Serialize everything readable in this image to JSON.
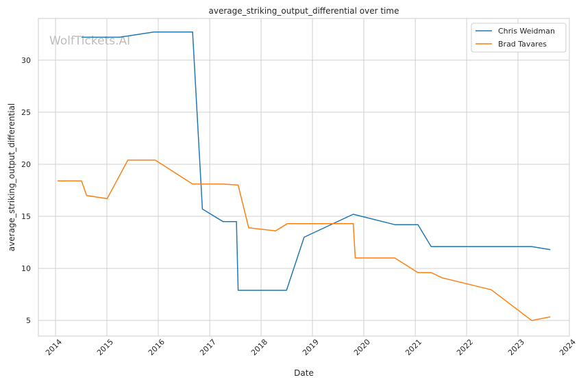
{
  "chart_data": {
    "type": "line",
    "title": "average_striking_output_differential over time",
    "xlabel": "Date",
    "ylabel": "average_striking_output_differential",
    "watermark": "WolfTickets.AI",
    "xlim": [
      "2013-09-01",
      "2024-01-01"
    ],
    "ylim": [
      3.5,
      34
    ],
    "x_ticks": [
      "2014",
      "2015",
      "2016",
      "2017",
      "2018",
      "2019",
      "2020",
      "2021",
      "2022",
      "2023",
      "2024"
    ],
    "y_ticks": [
      5,
      10,
      15,
      20,
      25,
      30
    ],
    "grid": true,
    "legend_position": "top-right",
    "series": [
      {
        "name": "Chris Weidman",
        "color": "#1f77b4",
        "points": [
          [
            "2014-07-05",
            32.2
          ],
          [
            "2015-04-01",
            32.2
          ],
          [
            "2015-12-01",
            32.7
          ],
          [
            "2016-09-01",
            32.7
          ],
          [
            "2016-11-10",
            15.7
          ],
          [
            "2017-04-05",
            14.5
          ],
          [
            "2017-07-10",
            14.5
          ],
          [
            "2017-07-22",
            7.9
          ],
          [
            "2018-07-01",
            7.9
          ],
          [
            "2018-11-03",
            13.0
          ],
          [
            "2019-10-18",
            15.2
          ],
          [
            "2020-08-08",
            14.2
          ],
          [
            "2021-01-20",
            14.2
          ],
          [
            "2021-04-24",
            12.1
          ],
          [
            "2023-04-08",
            12.1
          ],
          [
            "2023-08-19",
            11.8
          ]
        ]
      },
      {
        "name": "Brad Tavares",
        "color": "#ff7f0e",
        "points": [
          [
            "2014-01-15",
            18.4
          ],
          [
            "2014-07-05",
            18.4
          ],
          [
            "2014-08-10",
            17.0
          ],
          [
            "2015-01-03",
            16.7
          ],
          [
            "2015-05-30",
            20.4
          ],
          [
            "2015-12-11",
            20.4
          ],
          [
            "2016-09-01",
            18.1
          ],
          [
            "2017-04-08",
            18.1
          ],
          [
            "2017-07-22",
            18.0
          ],
          [
            "2017-10-05",
            13.9
          ],
          [
            "2018-04-14",
            13.6
          ],
          [
            "2018-07-07",
            14.3
          ],
          [
            "2019-10-18",
            14.3
          ],
          [
            "2019-11-01",
            11.0
          ],
          [
            "2020-08-08",
            11.0
          ],
          [
            "2021-01-20",
            9.6
          ],
          [
            "2021-04-24",
            9.6
          ],
          [
            "2021-07-10",
            9.1
          ],
          [
            "2022-06-25",
            7.95
          ],
          [
            "2023-04-08",
            5.0
          ],
          [
            "2023-08-19",
            5.35
          ]
        ]
      }
    ]
  }
}
